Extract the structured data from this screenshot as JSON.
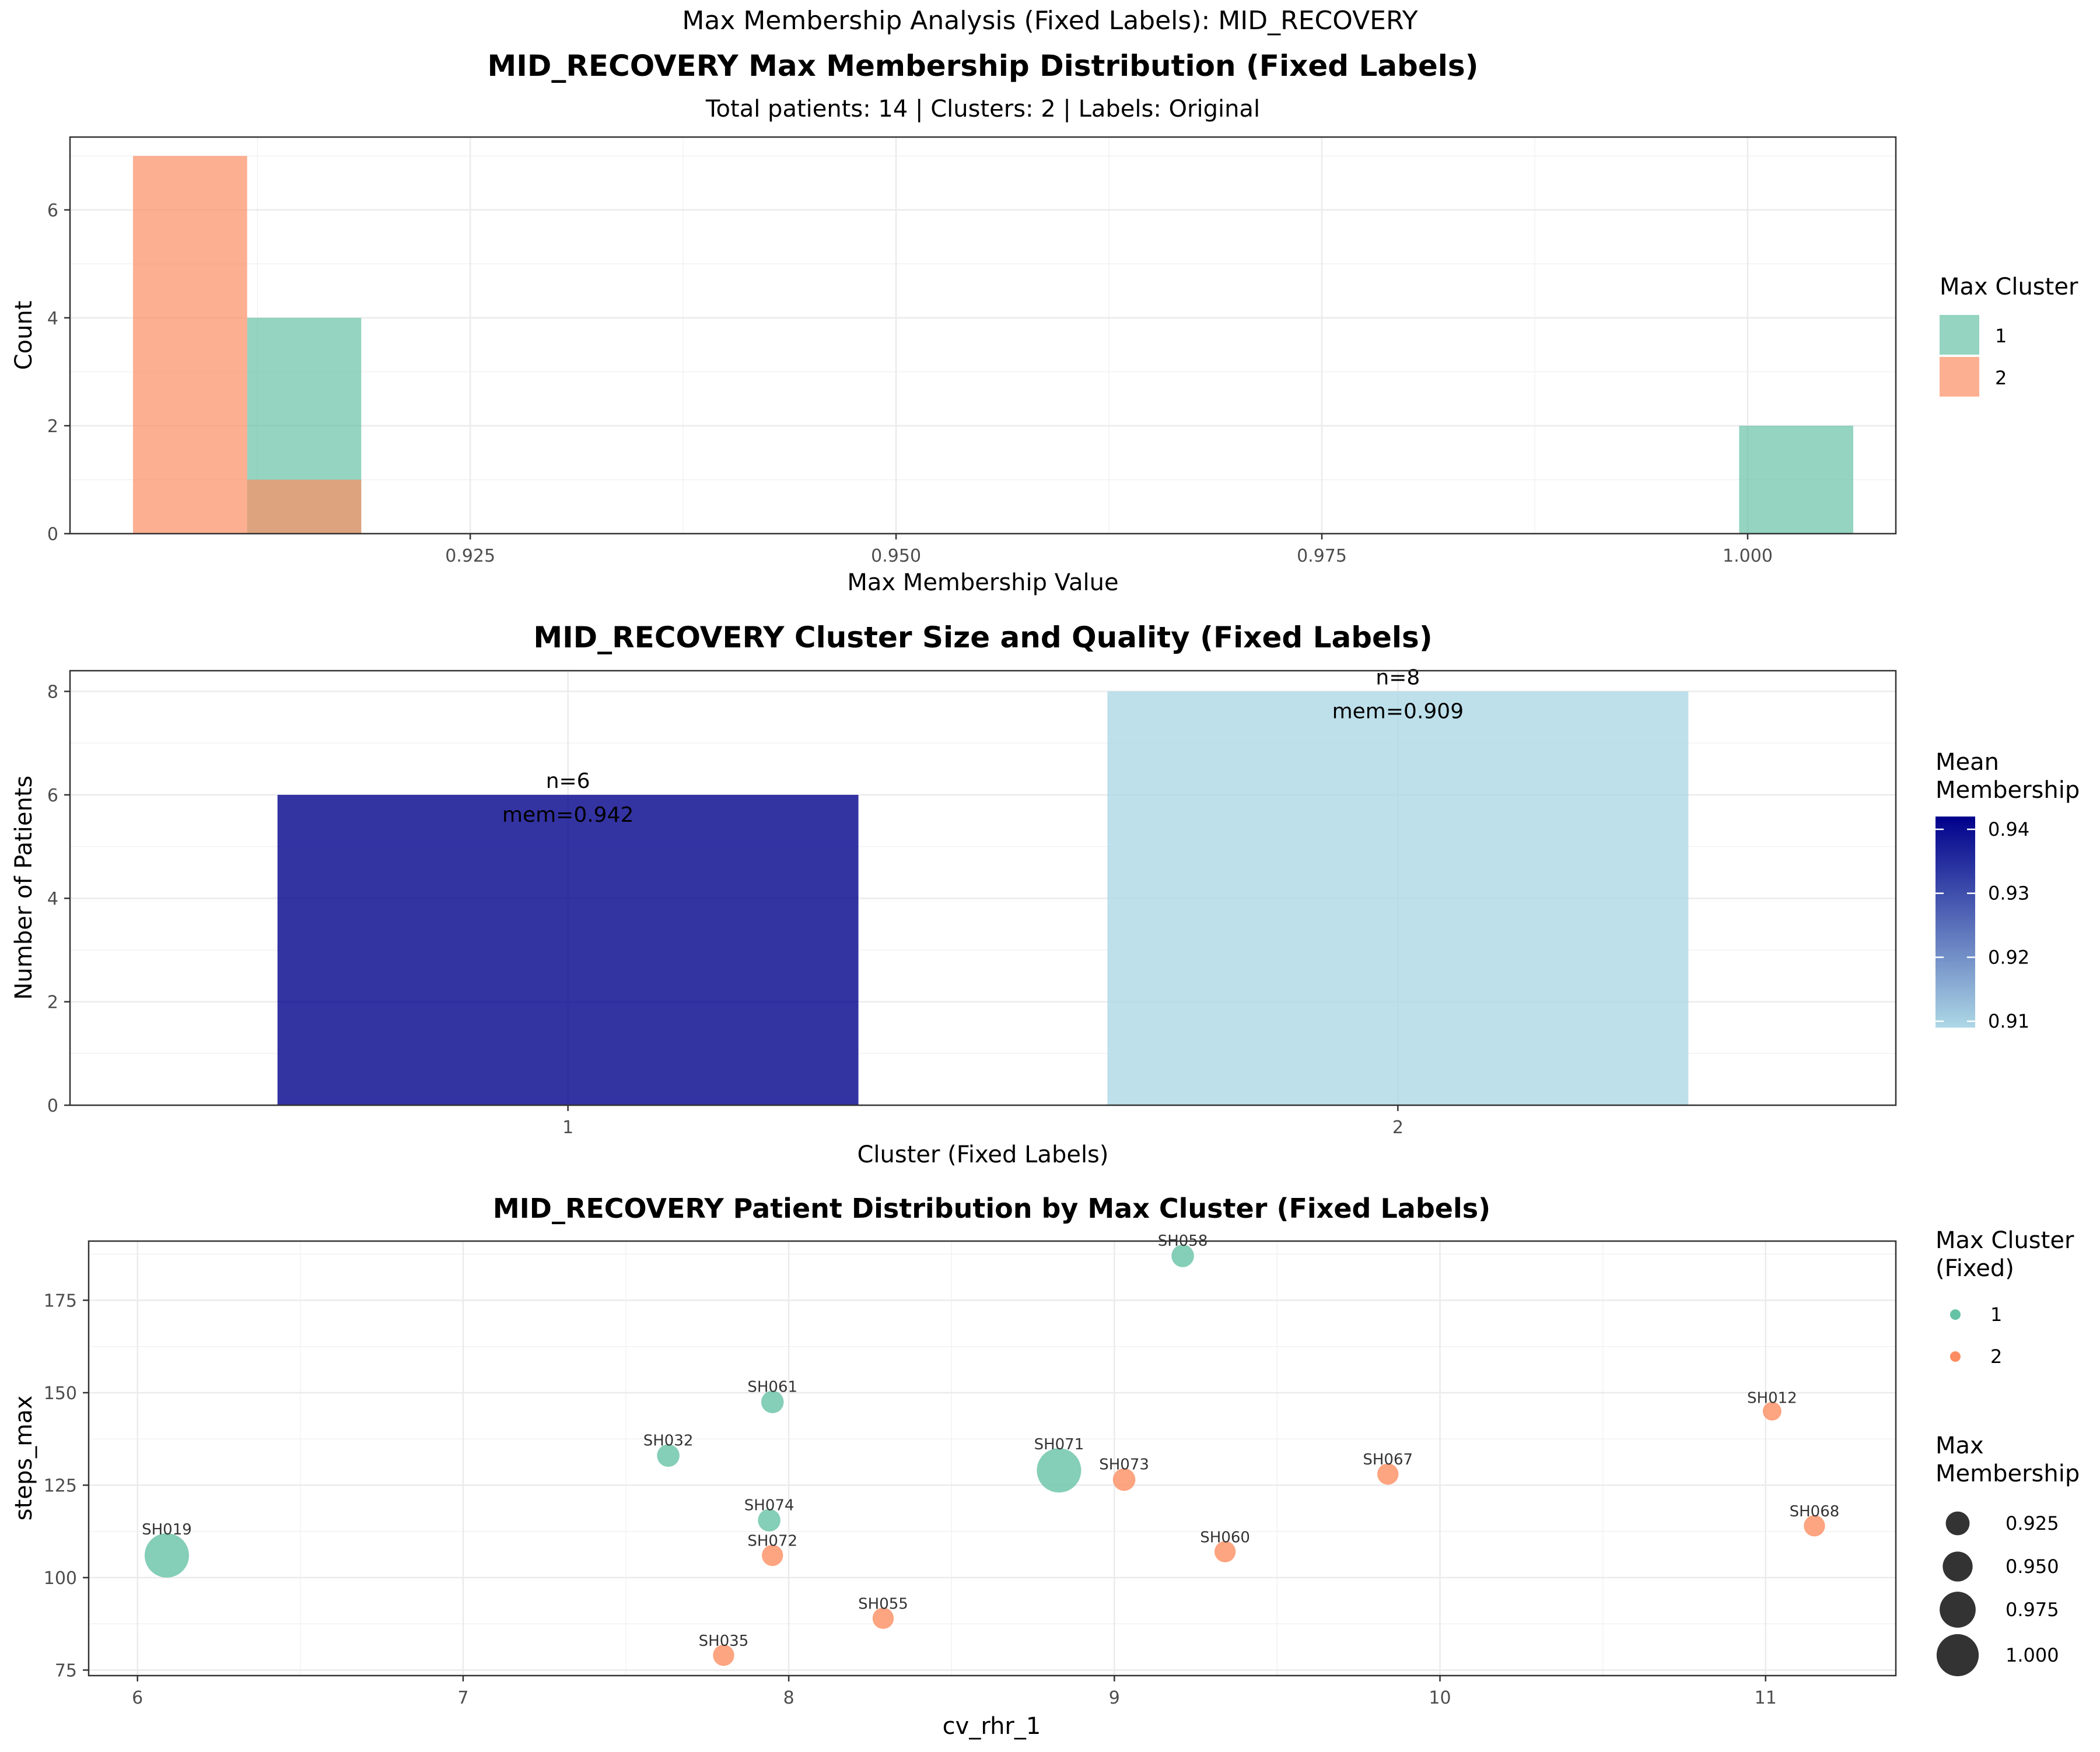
{
  "figure": {
    "suptitle": "Max Membership Analysis (Fixed Labels): MID_RECOVERY"
  },
  "colors": {
    "cluster1": "#66C2A5",
    "cluster2": "#FC8D62",
    "gradient_low": "#ADD8E6",
    "gradient_high": "#00008B"
  },
  "chart_data": [
    {
      "type": "bar",
      "subtype": "histogram",
      "title": "MID_RECOVERY Max Membership Distribution (Fixed Labels)",
      "subtitle": "Total patients: 14 | Clusters: 2 | Labels: Original",
      "xlabel": "Max Membership Value",
      "ylabel": "Count",
      "xlim": [
        0.9015,
        1.0087
      ],
      "ylim": [
        0,
        7.35
      ],
      "x_ticks": [
        0.925,
        0.95,
        0.975,
        1.0
      ],
      "x_tick_labels": [
        "0.925",
        "0.950",
        "0.975",
        "1.000"
      ],
      "y_ticks": [
        0,
        2,
        4,
        6
      ],
      "y_tick_labels": [
        "0",
        "2",
        "4",
        "6"
      ],
      "bin_edges": [
        0.9052,
        0.9119,
        0.9186,
        0.9995,
        1.0062
      ],
      "series": [
        {
          "name": "1",
          "bins": [
            {
              "x0": 0.9119,
              "x1": 0.9186,
              "count": 4
            },
            {
              "x0": 0.9995,
              "x1": 1.0062,
              "count": 2
            }
          ]
        },
        {
          "name": "2",
          "bins": [
            {
              "x0": 0.9052,
              "x1": 0.9119,
              "count": 7
            },
            {
              "x0": 0.9119,
              "x1": 0.9186,
              "count": 1
            }
          ]
        }
      ],
      "legend": {
        "title": "Max Cluster",
        "entries": [
          "1",
          "2"
        ],
        "position": "right"
      },
      "grid": true
    },
    {
      "type": "bar",
      "title": "MID_RECOVERY Cluster Size and Quality (Fixed Labels)",
      "xlabel": "Cluster (Fixed Labels)",
      "ylabel": "Number of Patients",
      "categories": [
        "1",
        "2"
      ],
      "values": [
        6,
        8
      ],
      "mean_membership": [
        0.942,
        0.909
      ],
      "count_labels": [
        "n=6",
        "n=8"
      ],
      "mem_labels": [
        "mem=0.942",
        "mem=0.909"
      ],
      "ylim": [
        0,
        8.4
      ],
      "y_ticks": [
        0,
        2,
        4,
        6,
        8
      ],
      "y_tick_labels": [
        "0",
        "2",
        "4",
        "6",
        "8"
      ],
      "legend": {
        "title_lines": [
          "Mean",
          "Membership"
        ],
        "type": "colorbar",
        "ticks": [
          0.94,
          0.93,
          0.92,
          0.91
        ],
        "tick_labels": [
          "0.94",
          "0.93",
          "0.92",
          "0.91"
        ],
        "range": [
          0.909,
          0.942
        ],
        "position": "right"
      },
      "grid": true
    },
    {
      "type": "scatter",
      "title": "MID_RECOVERY Patient Distribution by Max Cluster (Fixed Labels)",
      "xlabel": "cv_rhr_1",
      "ylabel": "steps_max",
      "xlim": [
        5.85,
        11.4
      ],
      "ylim": [
        73.5,
        191
      ],
      "x_ticks": [
        6,
        7,
        8,
        9,
        10,
        11
      ],
      "x_tick_labels": [
        "6",
        "7",
        "8",
        "9",
        "10",
        "11"
      ],
      "y_ticks": [
        75,
        100,
        125,
        150,
        175
      ],
      "y_tick_labels": [
        "75",
        "100",
        "125",
        "150",
        "175"
      ],
      "points": [
        {
          "label": "SH058",
          "x": 9.21,
          "y": 187,
          "cluster": 1,
          "membership": 0.915
        },
        {
          "label": "SH061",
          "x": 7.95,
          "y": 147.5,
          "cluster": 1,
          "membership": 0.915
        },
        {
          "label": "SH012",
          "x": 11.02,
          "y": 145,
          "cluster": 2,
          "membership": 0.9
        },
        {
          "label": "SH032",
          "x": 7.63,
          "y": 133,
          "cluster": 1,
          "membership": 0.915
        },
        {
          "label": "SH071",
          "x": 8.83,
          "y": 129,
          "cluster": 1,
          "membership": 1.0
        },
        {
          "label": "SH073",
          "x": 9.03,
          "y": 126.5,
          "cluster": 2,
          "membership": 0.915
        },
        {
          "label": "SH067",
          "x": 9.84,
          "y": 128,
          "cluster": 2,
          "membership": 0.91
        },
        {
          "label": "SH074",
          "x": 7.94,
          "y": 115.5,
          "cluster": 1,
          "membership": 0.915
        },
        {
          "label": "SH068",
          "x": 11.15,
          "y": 114,
          "cluster": 2,
          "membership": 0.91
        },
        {
          "label": "SH019",
          "x": 6.09,
          "y": 106,
          "cluster": 1,
          "membership": 1.0
        },
        {
          "label": "SH072",
          "x": 7.95,
          "y": 106,
          "cluster": 2,
          "membership": 0.91
        },
        {
          "label": "SH060",
          "x": 9.34,
          "y": 107,
          "cluster": 2,
          "membership": 0.91
        },
        {
          "label": "SH055",
          "x": 8.29,
          "y": 89,
          "cluster": 2,
          "membership": 0.91
        },
        {
          "label": "SH035",
          "x": 7.8,
          "y": 79,
          "cluster": 2,
          "membership": 0.91
        }
      ],
      "color_legend": {
        "title_lines": [
          "Max Cluster",
          "(Fixed)"
        ],
        "entries": [
          "1",
          "2"
        ],
        "position": "right"
      },
      "size_legend": {
        "title_lines": [
          "Max",
          "Membership"
        ],
        "values": [
          0.925,
          0.95,
          0.975,
          1.0
        ],
        "labels": [
          "0.925",
          "0.950",
          "0.975",
          "1.000"
        ],
        "position": "right"
      },
      "grid": true
    }
  ]
}
